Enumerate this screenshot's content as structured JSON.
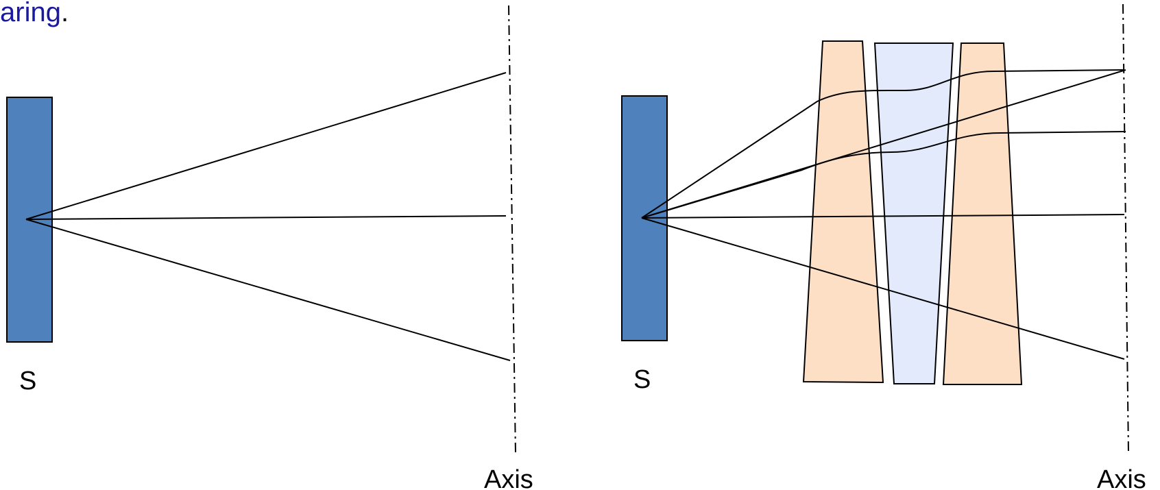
{
  "caption": {
    "highlighted_text": "aring",
    "trailing_text": "."
  },
  "left_panel": {
    "source_label": "S",
    "axis_label": "Axis"
  },
  "right_panel": {
    "source_label": "S",
    "axis_label": "Axis"
  },
  "colors": {
    "source": "#4f81bd",
    "outer_lens": "#fddfc6",
    "inner_lens": "#e2eafb",
    "caption_highlight": "#1a1aa0",
    "stroke": "#000000"
  }
}
